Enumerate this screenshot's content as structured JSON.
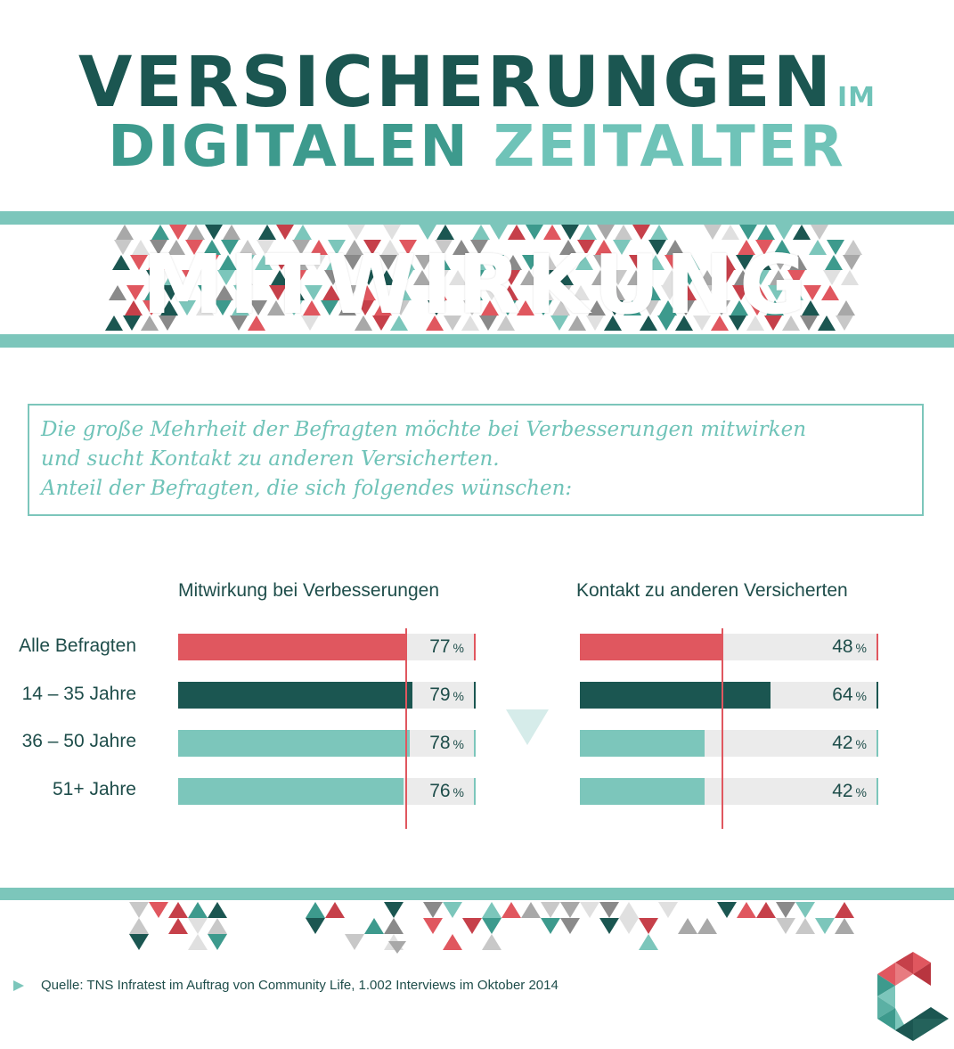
{
  "title": {
    "line1": "VERSICHERUNGEN",
    "line1_suffix": "IM",
    "line2_word1": "DIGITALEN",
    "line2_word2": "ZEITALTER"
  },
  "banner": {
    "word": "MITWIRKUNG"
  },
  "intro": {
    "line1": "Die große Mehrheit der Befragten möchte bei Verbesserungen mitwirken",
    "line2": "und sucht Kontakt zu anderen Versicherten.",
    "line3": "Anteil der Befragten, die sich folgendes wünschen:"
  },
  "chart_data": {
    "type": "bar",
    "categories": [
      "Alle Befragten",
      "14 – 35 Jahre",
      "36 – 50 Jahre",
      "51+ Jahre"
    ],
    "series": [
      {
        "name": "Mitwirkung bei Verbesserungen",
        "values": [
          77,
          79,
          78,
          76
        ]
      },
      {
        "name": "Kontakt zu anderen Versicherten",
        "values": [
          48,
          64,
          42,
          42
        ]
      }
    ],
    "unit": "%",
    "ylim": [
      0,
      100
    ],
    "reference_line": 77,
    "reference_line_right": 48,
    "legend": "none",
    "grid": false
  },
  "labels": {
    "series0_head": "Mitwirkung bei Verbesserungen",
    "series1_head": "Kontakt zu anderen Versicherten",
    "rows": [
      "Alle Befragten",
      "14 – 35 Jahre",
      "36 – 50 Jahre",
      "51+ Jahre"
    ],
    "unit": "%"
  },
  "colors": {
    "teal_dark": "#1b5651",
    "teal_mid": "#3d9a8d",
    "teal_light": "#7cc6bb",
    "red": "#e0575f",
    "grey": "#ebebeb",
    "row_colors": [
      "#e0575f",
      "#1b5651",
      "#7cc6bb",
      "#7cc6bb"
    ]
  },
  "source": "Quelle: TNS Infratest im Auftrag von Community Life, 1.002 Interviews im Oktober 2014",
  "icons": {
    "source_marker": "play-icon",
    "brand": "community-life-logo"
  }
}
